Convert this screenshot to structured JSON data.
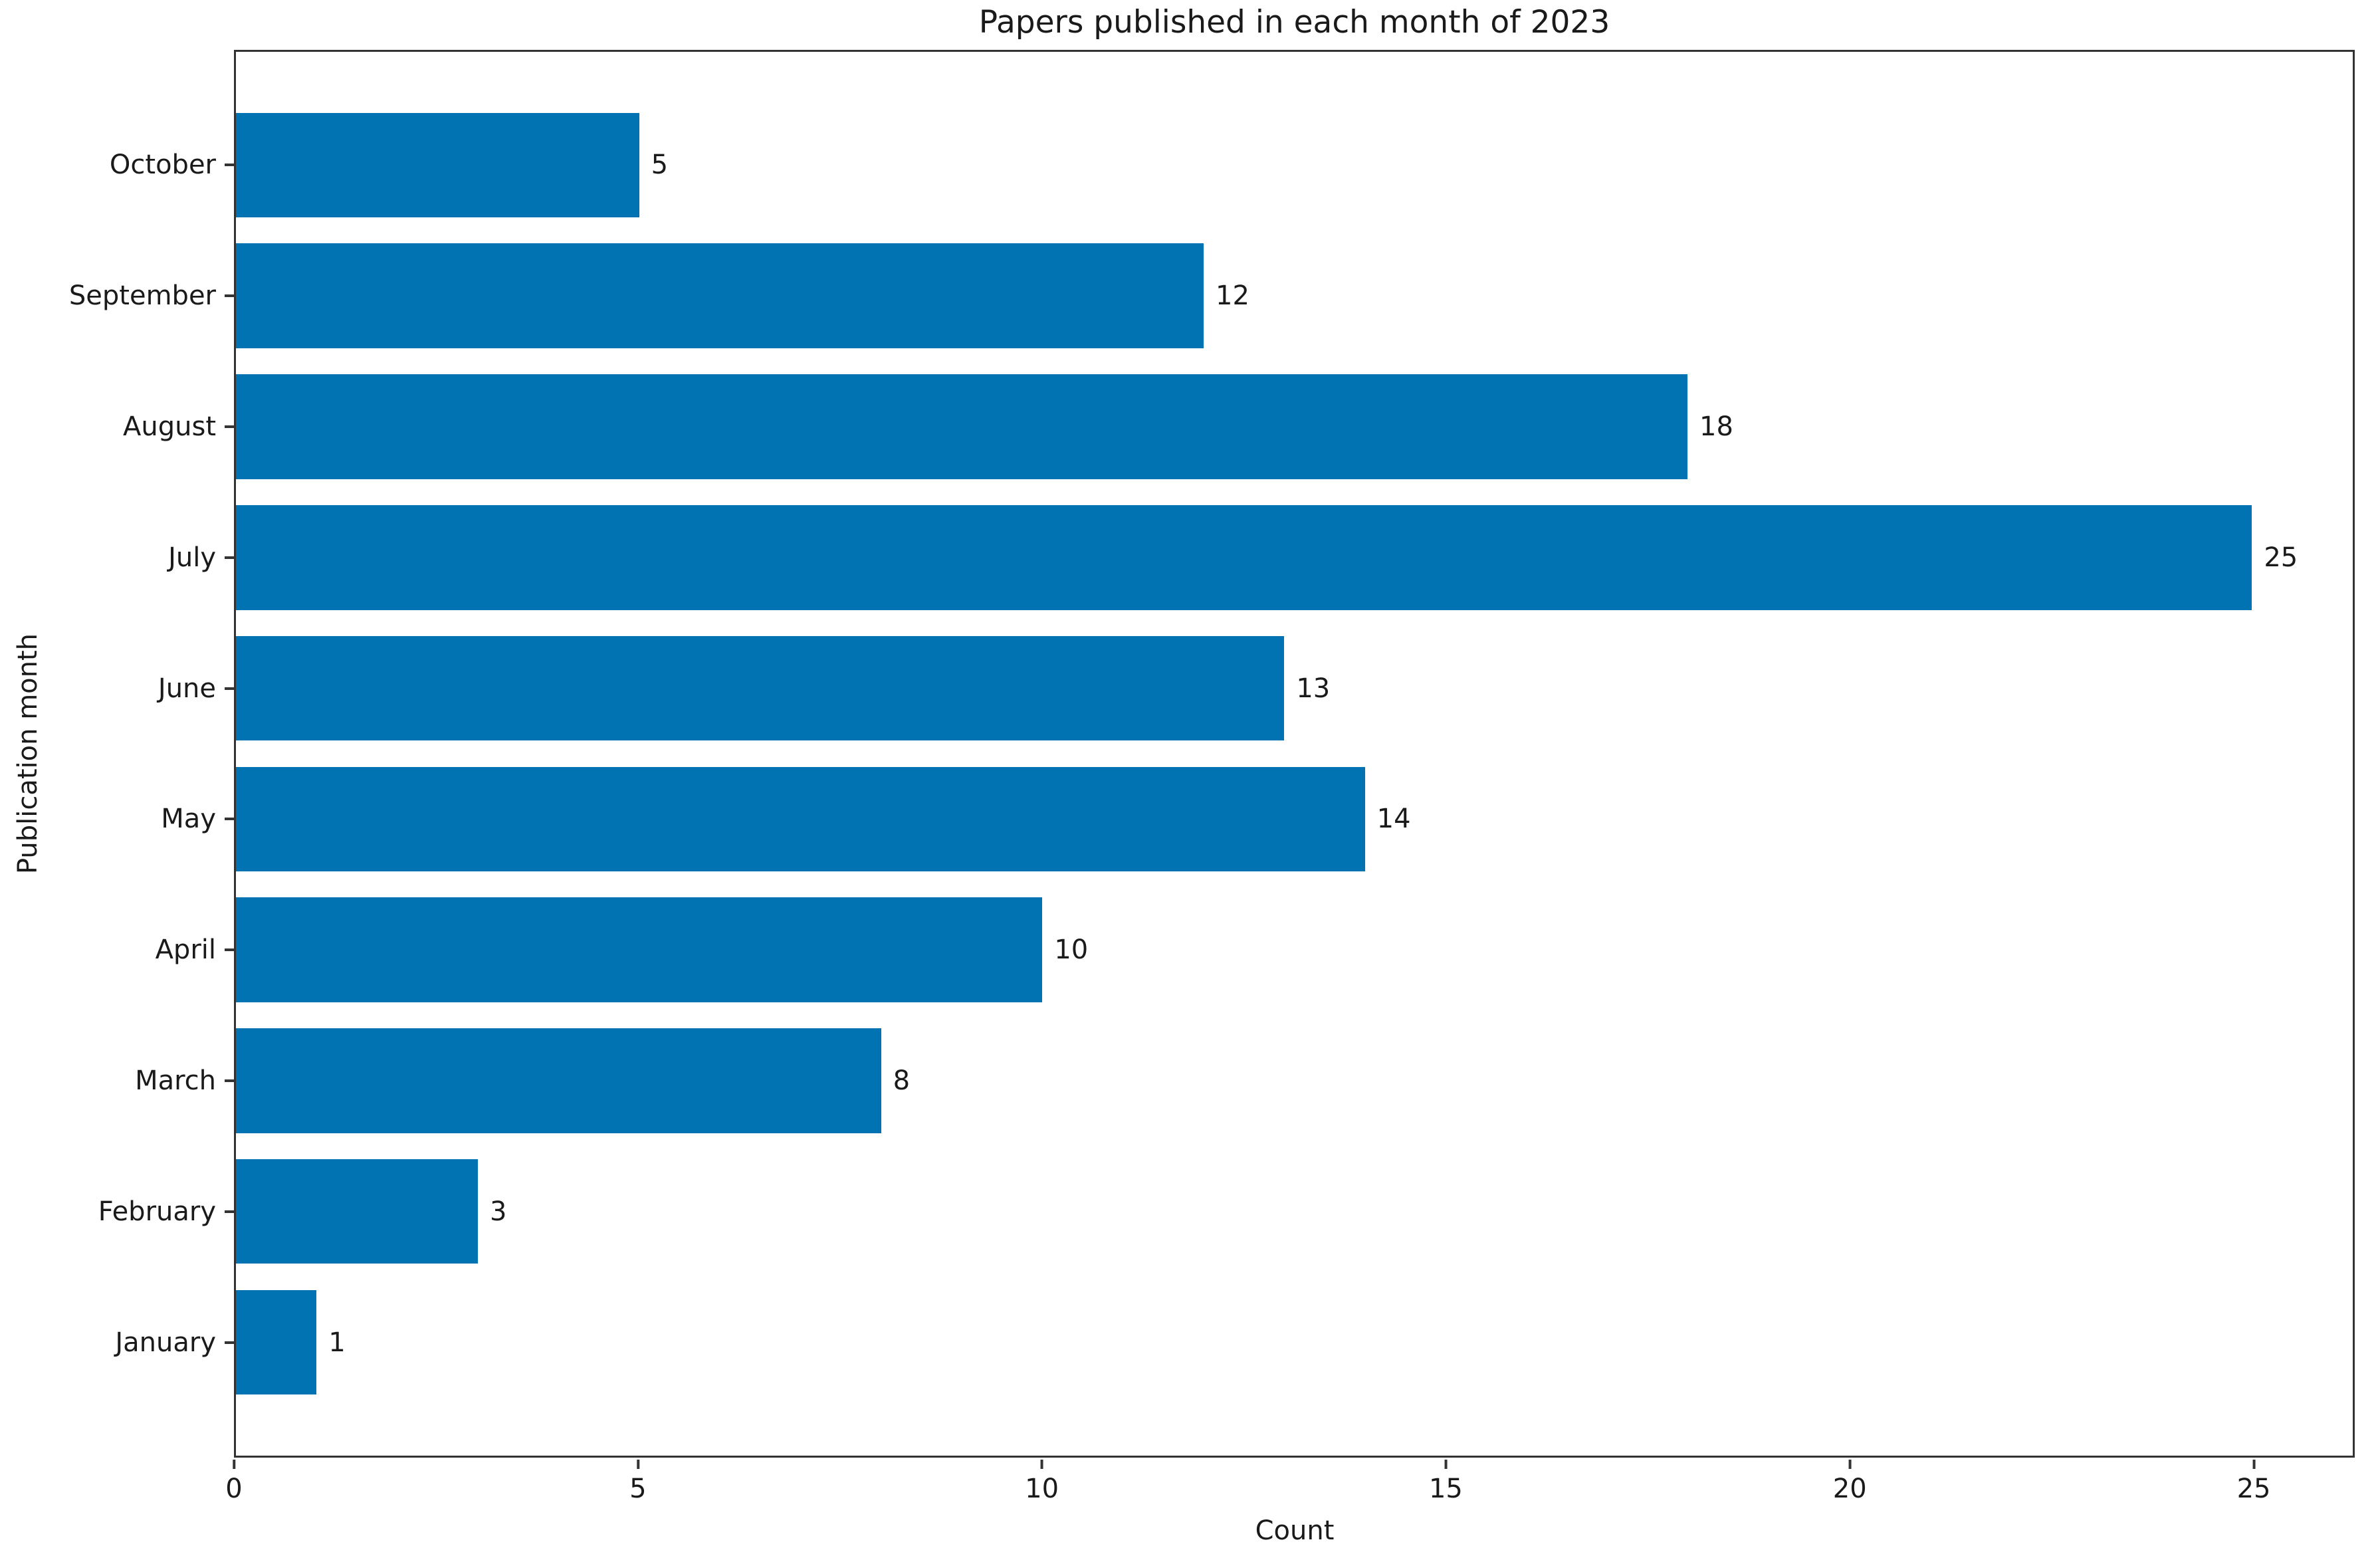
{
  "figure": {
    "title": "Papers published in each month of 2023"
  },
  "chart_data": {
    "type": "bar",
    "orientation": "horizontal",
    "title": "Papers published in each month of 2023",
    "xlabel": "Count",
    "ylabel": "Publication month",
    "categories": [
      "October",
      "September",
      "August",
      "July",
      "June",
      "May",
      "April",
      "March",
      "February",
      "January"
    ],
    "values": [
      5,
      12,
      18,
      25,
      13,
      14,
      10,
      8,
      3,
      1
    ],
    "bar_value_labels": [
      "5",
      "12",
      "18",
      "25",
      "13",
      "14",
      "10",
      "8",
      "3",
      "1"
    ],
    "x_ticks": [
      0,
      5,
      10,
      15,
      20,
      25
    ],
    "xlim": [
      0,
      26.25
    ],
    "grid": false,
    "legend": false,
    "bar_color": "#0173b2",
    "axis_color": "#333333",
    "text_color": "#1a1a1a"
  }
}
